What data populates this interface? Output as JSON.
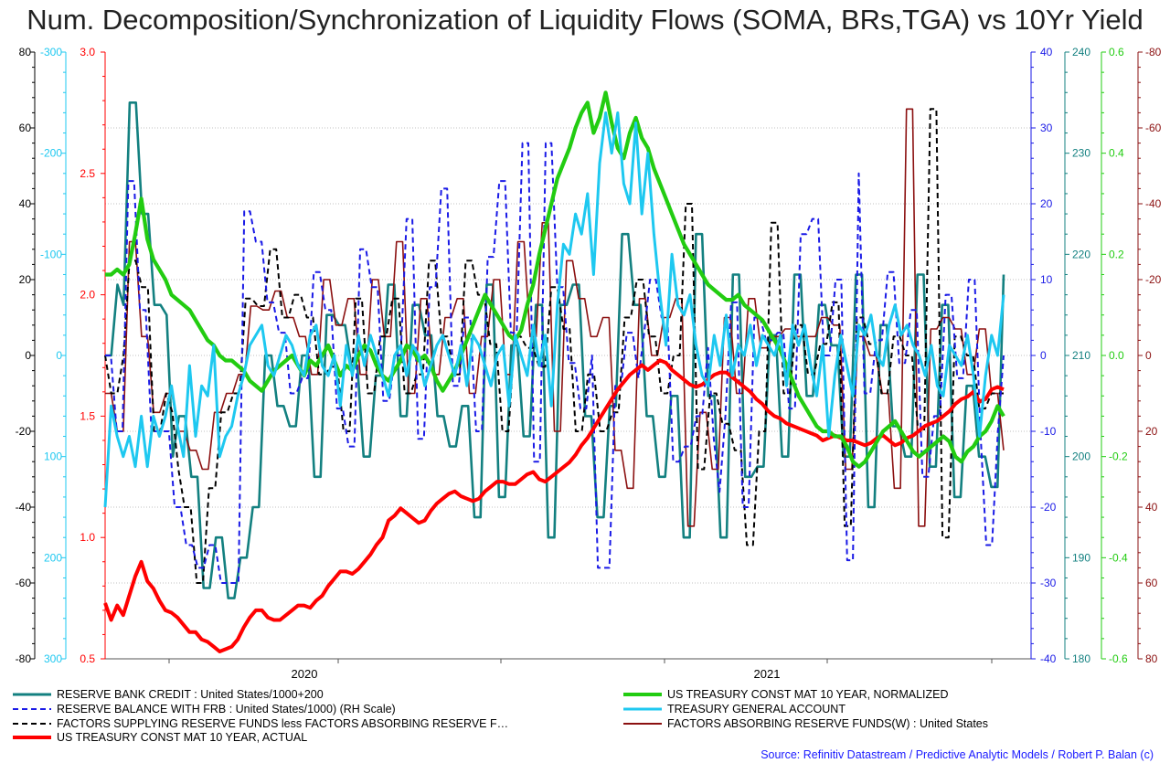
{
  "title": "Num. Decomposition/Synchronization of Liquidity Flows (SOMA, BRs,TGA) vs 10Yr Yield",
  "source": "Source: Refinitiv Datastream / Predictive Analytic Models / Robert P. Balan (c)",
  "colors": {
    "rbc": "#138080",
    "reserve_balance": "#1a1ae6",
    "factors_supplying": "#000000",
    "yield_actual": "#ff0000",
    "yield_normalized": "#22cc11",
    "tga": "#1ec8f0",
    "factors_absorbing": "#8b1010",
    "grid": "#bbbbbb"
  },
  "chart_data": {
    "type": "line",
    "x_axis": {
      "labels": [
        "2020",
        "2021"
      ],
      "range": [
        "2019-05",
        "2022-01"
      ]
    },
    "axes": [
      {
        "id": "black-left",
        "color": "#000000",
        "ticks": [
          "80",
          "60",
          "40",
          "20",
          "0",
          "-20",
          "-40",
          "-60",
          "-80"
        ],
        "range": [
          -80,
          80
        ]
      },
      {
        "id": "cyan-left",
        "color": "#1ec8f0",
        "ticks": [
          "-300",
          "-200",
          "-100",
          "0",
          "100",
          "200",
          "300"
        ],
        "range": [
          300,
          -300
        ],
        "inverted": true
      },
      {
        "id": "red-left",
        "color": "#ff0000",
        "ticks": [
          "3.0",
          "2.5",
          "2.0",
          "1.5",
          "1.0",
          "0.5"
        ],
        "range": [
          0.5,
          3.0
        ]
      },
      {
        "id": "blue-right",
        "color": "#1a1ae6",
        "ticks": [
          "40",
          "30",
          "20",
          "10",
          "0",
          "-10",
          "-20",
          "-30",
          "-40"
        ],
        "range": [
          -40,
          40
        ]
      },
      {
        "id": "teal-right",
        "color": "#138080",
        "ticks": [
          "240",
          "230",
          "220",
          "210",
          "200",
          "190",
          "180"
        ],
        "range": [
          180,
          240
        ]
      },
      {
        "id": "green-right",
        "color": "#22cc11",
        "ticks": [
          "0.6",
          "0.4",
          "0.2",
          "0.0",
          "-0.2",
          "-0.4",
          "-0.6"
        ],
        "range": [
          -0.6,
          0.6
        ]
      },
      {
        "id": "maroon-right",
        "color": "#8b1010",
        "ticks": [
          "-80",
          "-60",
          "-40",
          "-20",
          "0",
          "20",
          "40",
          "60",
          "80"
        ],
        "range": [
          80,
          -80
        ],
        "inverted": true
      }
    ],
    "series": [
      {
        "name": "RESERVE BANK CREDIT : United States/1000+200",
        "axis": "teal-right",
        "style": "step",
        "values": [
          210,
          210,
          217,
          215,
          235,
          235,
          224,
          224,
          215,
          215,
          214,
          200,
          204,
          204,
          198,
          198,
          187,
          187,
          192,
          192,
          186,
          186,
          190,
          190,
          195,
          195,
          210,
          210,
          205,
          205,
          203,
          203,
          210,
          210,
          198,
          198,
          214,
          214,
          213,
          213,
          209,
          209,
          200,
          200,
          208,
          208,
          217,
          217,
          204,
          204,
          215,
          215,
          212,
          212,
          204,
          204,
          201,
          201,
          205,
          205,
          194,
          194,
          217,
          217,
          196,
          196,
          211,
          211,
          202,
          202,
          215,
          215,
          192,
          192,
          215,
          215,
          217,
          217,
          204,
          204,
          194,
          194,
          205,
          205,
          222,
          222,
          215,
          215,
          204,
          204,
          198,
          198,
          206,
          206,
          192,
          192,
          222,
          222,
          206,
          206,
          192,
          192,
          218,
          218,
          198,
          198,
          199,
          199,
          212,
          212,
          200,
          200,
          218,
          218,
          206,
          206,
          215,
          215,
          211,
          211,
          200,
          200,
          218,
          218,
          195,
          195,
          213,
          213,
          203,
          203,
          200,
          200,
          218,
          218,
          199,
          199,
          215,
          215,
          196,
          196,
          207,
          207,
          200,
          200,
          197,
          197,
          218
        ]
      },
      {
        "name": "RESERVE BALANCE WITH FRB : United States/1000) (RH Scale)",
        "axis": "blue-right",
        "style": "step",
        "values": [
          0,
          0,
          -10,
          -10,
          23,
          23,
          6,
          6,
          -10,
          -10,
          -10,
          -10,
          -20,
          -20,
          -25,
          -25,
          -28,
          -28,
          -25,
          -25,
          -30,
          -30,
          -30,
          -30,
          19,
          19,
          15,
          15,
          7,
          7,
          3,
          3,
          -5,
          -5,
          -3,
          -3,
          11,
          11,
          6,
          6,
          -7,
          -7,
          -12,
          -12,
          14,
          14,
          9,
          9,
          -6,
          -6,
          0,
          0,
          18,
          18,
          -11,
          -11,
          9,
          9,
          22,
          22,
          -4,
          -4,
          5,
          5,
          -10,
          -10,
          13,
          13,
          23,
          23,
          3,
          3,
          28,
          28,
          -14,
          -14,
          28,
          28,
          9,
          9,
          -1,
          -1,
          -7,
          -7,
          0,
          -28,
          -28,
          -28,
          -4,
          -4,
          3,
          3,
          -3,
          3,
          10,
          10,
          5,
          5,
          -14,
          -14,
          -12,
          -12,
          -8,
          -8,
          1,
          -11,
          -18,
          -8,
          7,
          7,
          -20,
          -20,
          5,
          5,
          2,
          2,
          3,
          3,
          -7,
          -7,
          16,
          16,
          18,
          18,
          0,
          0,
          10,
          10,
          -27,
          -27,
          24,
          -5,
          -5,
          2,
          2,
          11,
          11,
          -1,
          -1,
          6,
          6,
          -16,
          -16,
          -8,
          -8,
          8,
          8,
          -3,
          -3,
          10,
          10,
          -10,
          -25,
          -25,
          -10,
          0
        ]
      },
      {
        "name": "FACTORS SUPPLYING RESERVE FUNDS less FACTORS ABSORBING RESERVE F…",
        "axis": "black-left",
        "style": "step",
        "values": [
          0,
          -10,
          -10,
          0,
          25,
          25,
          18,
          18,
          -20,
          -20,
          -10,
          -15,
          -30,
          -40,
          -40,
          -60,
          -60,
          -35,
          -35,
          -15,
          -15,
          -10,
          -10,
          15,
          15,
          13,
          13,
          28,
          28,
          10,
          10,
          16,
          16,
          10,
          10,
          -5,
          -5,
          -3,
          -3,
          -20,
          -20,
          15,
          15,
          -10,
          -10,
          5,
          5,
          15,
          15,
          -10,
          -10,
          -5,
          -5,
          25,
          25,
          5,
          5,
          -5,
          -5,
          25,
          25,
          16,
          16,
          3,
          3,
          -20,
          -20,
          5,
          5,
          2,
          2,
          -3,
          -3,
          18,
          18,
          7,
          7,
          -20,
          -20,
          -5,
          -5,
          -20,
          -20,
          -15,
          -15,
          10,
          10,
          20,
          20,
          5,
          5,
          -10,
          -10,
          0,
          0,
          40,
          40,
          -30,
          -30,
          -10,
          -10,
          -18,
          -18,
          -25,
          -25,
          -50,
          -50,
          -20,
          -20,
          35,
          35,
          -10,
          -10,
          8,
          8,
          -5,
          -5,
          3,
          3,
          14,
          14,
          -45,
          -45,
          10,
          10,
          3,
          3,
          -10,
          -10,
          5,
          5,
          0,
          0,
          -20,
          -20,
          65,
          65,
          -48,
          -48,
          5,
          5,
          0,
          0,
          -14,
          -14,
          -10,
          -10,
          -10
        ]
      },
      {
        "name": "US TREASURY CONST MAT 10 YEAR, ACTUAL",
        "axis": "red-left",
        "values": [
          0.73,
          0.66,
          0.72,
          0.68,
          0.76,
          0.84,
          0.9,
          0.82,
          0.79,
          0.74,
          0.7,
          0.69,
          0.67,
          0.64,
          0.61,
          0.61,
          0.58,
          0.57,
          0.55,
          0.53,
          0.54,
          0.55,
          0.58,
          0.63,
          0.67,
          0.7,
          0.7,
          0.67,
          0.66,
          0.66,
          0.68,
          0.7,
          0.72,
          0.72,
          0.71,
          0.74,
          0.76,
          0.8,
          0.83,
          0.86,
          0.86,
          0.85,
          0.87,
          0.9,
          0.93,
          0.97,
          1.0,
          1.07,
          1.09,
          1.12,
          1.1,
          1.08,
          1.06,
          1.07,
          1.11,
          1.14,
          1.16,
          1.18,
          1.19,
          1.17,
          1.16,
          1.15,
          1.16,
          1.19,
          1.21,
          1.23,
          1.23,
          1.22,
          1.22,
          1.24,
          1.26,
          1.27,
          1.24,
          1.23,
          1.25,
          1.27,
          1.29,
          1.31,
          1.34,
          1.38,
          1.41,
          1.45,
          1.49,
          1.53,
          1.57,
          1.61,
          1.64,
          1.67,
          1.69,
          1.71,
          1.69,
          1.71,
          1.73,
          1.72,
          1.69,
          1.67,
          1.65,
          1.63,
          1.62,
          1.63,
          1.65,
          1.67,
          1.68,
          1.68,
          1.66,
          1.64,
          1.62,
          1.6,
          1.57,
          1.55,
          1.52,
          1.5,
          1.49,
          1.47,
          1.46,
          1.45,
          1.44,
          1.43,
          1.42,
          1.4,
          1.41,
          1.42,
          1.41,
          1.4,
          1.4,
          1.39,
          1.38,
          1.39,
          1.41,
          1.42,
          1.4,
          1.38,
          1.39,
          1.41,
          1.42,
          1.44,
          1.46,
          1.47,
          1.48,
          1.5,
          1.52,
          1.55,
          1.57,
          1.58,
          1.6,
          1.56,
          1.57,
          1.61,
          1.62,
          1.61
        ]
      },
      {
        "name": "US TREASURY CONST MAT 10 YEAR, NORMALIZED",
        "axis": "green-right",
        "values": [
          0.16,
          0.16,
          0.17,
          0.16,
          0.18,
          0.24,
          0.31,
          0.23,
          0.19,
          0.17,
          0.15,
          0.12,
          0.11,
          0.1,
          0.09,
          0.07,
          0.05,
          0.03,
          0.02,
          0.0,
          -0.01,
          -0.01,
          -0.02,
          -0.03,
          -0.05,
          -0.06,
          -0.07,
          -0.05,
          -0.03,
          -0.02,
          -0.01,
          0.0,
          -0.02,
          -0.04,
          -0.01,
          -0.02,
          0.0,
          0.02,
          -0.01,
          -0.04,
          -0.02,
          -0.03,
          0.0,
          0.02,
          0.01,
          -0.02,
          -0.04,
          -0.05,
          -0.03,
          -0.01,
          0.02,
          0.01,
          -0.01,
          0.0,
          -0.02,
          -0.05,
          -0.07,
          -0.05,
          -0.03,
          0.0,
          0.03,
          0.06,
          0.09,
          0.12,
          0.1,
          0.08,
          0.06,
          0.04,
          0.03,
          0.05,
          0.1,
          0.14,
          0.2,
          0.25,
          0.3,
          0.35,
          0.38,
          0.41,
          0.45,
          0.48,
          0.5,
          0.44,
          0.47,
          0.52,
          0.46,
          0.41,
          0.39,
          0.44,
          0.47,
          0.43,
          0.41,
          0.37,
          0.34,
          0.31,
          0.28,
          0.25,
          0.22,
          0.2,
          0.18,
          0.16,
          0.14,
          0.13,
          0.12,
          0.11,
          0.11,
          0.12,
          0.1,
          0.09,
          0.08,
          0.07,
          0.05,
          0.03,
          0.01,
          -0.02,
          -0.05,
          -0.08,
          -0.1,
          -0.12,
          -0.14,
          -0.15,
          -0.15,
          -0.16,
          -0.16,
          -0.18,
          -0.21,
          -0.22,
          -0.21,
          -0.19,
          -0.17,
          -0.15,
          -0.14,
          -0.13,
          -0.15,
          -0.17,
          -0.19,
          -0.2,
          -0.19,
          -0.18,
          -0.17,
          -0.16,
          -0.17,
          -0.2,
          -0.21,
          -0.19,
          -0.18,
          -0.16,
          -0.15,
          -0.13,
          -0.1,
          -0.12
        ]
      },
      {
        "name": "TREASURY GENERAL ACCOUNT",
        "axis": "cyan-left",
        "values": [
          150,
          50,
          80,
          100,
          80,
          110,
          60,
          110,
          60,
          80,
          60,
          30,
          70,
          100,
          10,
          80,
          30,
          40,
          -10,
          100,
          80,
          70,
          40,
          20,
          -10,
          -20,
          -30,
          10,
          20,
          0,
          -20,
          -10,
          10,
          20,
          -20,
          -30,
          10,
          20,
          0,
          50,
          -10,
          20,
          -20,
          10,
          -20,
          0,
          20,
          40,
          0,
          -10,
          20,
          -10,
          0,
          30,
          10,
          -10,
          -20,
          0,
          20,
          -10,
          30,
          -20,
          -10,
          10,
          30,
          0,
          -10,
          50,
          -20,
          0,
          20,
          -30,
          10,
          -20,
          50,
          -50,
          -110,
          -100,
          -140,
          -120,
          -160,
          -80,
          -190,
          -240,
          -200,
          -240,
          -170,
          -150,
          -230,
          -140,
          -200,
          -120,
          -60,
          -10,
          -100,
          -50,
          -40,
          -60,
          -10,
          20,
          30,
          -20,
          10,
          -40,
          20,
          -10,
          0,
          -30,
          10,
          -20,
          -10,
          0,
          -20,
          30,
          -30,
          -10,
          -30,
          10,
          40,
          -10,
          80,
          20,
          -20,
          10,
          40,
          -30,
          -20,
          -40,
          0,
          10,
          -30,
          -50,
          -20,
          -30,
          -10,
          0,
          20,
          -10,
          30,
          40,
          -10,
          0,
          10,
          -20,
          20,
          80,
          20,
          -20,
          0,
          -60
        ]
      },
      {
        "name": "FACTORS ABSORBING RESERVE FUNDS(W) : United States",
        "axis": "maroon-right",
        "style": "step",
        "values": [
          10,
          10,
          20,
          20,
          -30,
          -30,
          -5,
          -5,
          15,
          15,
          10,
          10,
          20,
          20,
          25,
          25,
          30,
          30,
          15,
          15,
          10,
          10,
          5,
          5,
          -13,
          -13,
          -12,
          -12,
          -17,
          -17,
          -10,
          -10,
          -5,
          -5,
          5,
          5,
          -20,
          -20,
          -8,
          -8,
          -15,
          -15,
          5,
          5,
          -20,
          -20,
          -5,
          -5,
          -30,
          -30,
          10,
          10,
          -15,
          -15,
          5,
          5,
          -10,
          -10,
          -15,
          -15,
          10,
          10,
          -5,
          -5,
          -20,
          -20,
          5,
          5,
          -30,
          -30,
          -5,
          -5,
          -35,
          -35,
          20,
          20,
          -25,
          -25,
          -15,
          -15,
          -5,
          -5,
          -10,
          -10,
          25,
          25,
          35,
          35,
          -15,
          -15,
          0,
          0,
          -10,
          -10,
          -15,
          -15,
          45,
          45,
          15,
          15,
          30,
          30,
          -10,
          -10,
          10,
          10,
          -15,
          -15,
          -2,
          -2,
          -5,
          -5,
          -7,
          -7,
          -5,
          -5,
          -5,
          -5,
          -10,
          -10,
          -8,
          -8,
          30,
          30,
          -5,
          -5,
          0,
          0,
          10,
          10,
          35,
          35,
          -65,
          -65,
          45,
          45,
          -7,
          -7,
          -10,
          -10,
          -7,
          -7,
          5,
          5,
          -7,
          -7,
          10,
          10,
          25
        ]
      }
    ]
  }
}
